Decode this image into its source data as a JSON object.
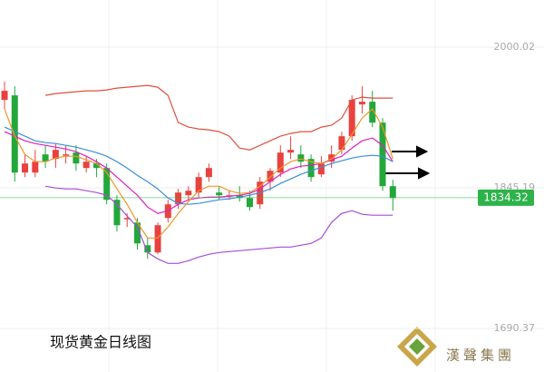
{
  "chart_data": {
    "type": "candlestick",
    "title": "现货黄金日线图",
    "open": [
      1942,
      1947,
      1862,
      1862,
      1882,
      1877,
      1882,
      1884,
      1867,
      1872,
      1867,
      1832,
      1812,
      1807,
      1782,
      1774,
      1812,
      1827,
      1837,
      1840,
      1857,
      1840,
      1837,
      1837,
      1834,
      1827,
      1852,
      1862,
      1884,
      1882,
      1877,
      1860,
      1874,
      1887,
      1902,
      1937,
      1940,
      1917,
      1847
    ],
    "high": [
      1962,
      1957,
      1882,
      1887,
      1892,
      1894,
      1892,
      1892,
      1880,
      1877,
      1872,
      1837,
      1817,
      1812,
      1790,
      1807,
      1832,
      1844,
      1847,
      1862,
      1872,
      1847,
      1842,
      1847,
      1842,
      1857,
      1867,
      1892,
      1902,
      1892,
      1882,
      1880,
      1892,
      1907,
      1947,
      1957,
      1952,
      1922,
      1854
    ],
    "low": [
      1932,
      1852,
      1857,
      1857,
      1867,
      1867,
      1872,
      1864,
      1862,
      1857,
      1827,
      1797,
      1802,
      1777,
      1767,
      1772,
      1807,
      1822,
      1832,
      1834,
      1852,
      1832,
      1832,
      1830,
      1820,
      1822,
      1842,
      1857,
      1877,
      1867,
      1852,
      1857,
      1867,
      1882,
      1897,
      1927,
      1912,
      1842,
      1820
    ],
    "close": [
      1952,
      1862,
      1872,
      1874,
      1874,
      1887,
      1882,
      1872,
      1874,
      1867,
      1832,
      1804,
      1812,
      1784,
      1774,
      1804,
      1827,
      1840,
      1842,
      1857,
      1867,
      1837,
      1837,
      1834,
      1824,
      1852,
      1864,
      1884,
      1887,
      1874,
      1857,
      1872,
      1882,
      1902,
      1942,
      1940,
      1917,
      1847,
      1834
    ],
    "up_color": "#e8423f",
    "down_color": "#22a83a",
    "series": [
      {
        "color": "#e0503c",
        "values": [
          null,
          null,
          null,
          null,
          1947,
          1949,
          1950,
          1951,
          1952,
          1952,
          1953,
          1955,
          1956,
          1957,
          1958,
          1956,
          1947,
          1917,
          1912,
          1910,
          1909,
          1907,
          1902,
          1889,
          1887,
          1892,
          1897,
          1902,
          1905,
          1907,
          1907,
          1912,
          1914,
          1922,
          1942,
          1945,
          1944,
          1944,
          1944
        ]
      },
      {
        "color": "#a64dd9",
        "values": [
          null,
          null,
          null,
          null,
          1847,
          1845,
          1844,
          1844,
          1842,
          1840,
          1837,
          1827,
          1814,
          1802,
          1774,
          1767,
          1762,
          1762,
          1765,
          1769,
          1772,
          1774,
          1775,
          1776,
          1777,
          1778,
          1779,
          1780,
          1780,
          1782,
          1784,
          1790,
          1807,
          1817,
          1820,
          1816,
          1815,
          1815,
          1815
        ]
      },
      {
        "color": "#e020c0",
        "values": [
          1907,
          1902,
          1897,
          1894,
          1892,
          1890,
          1888,
          1885,
          1880,
          1874,
          1867,
          1857,
          1847,
          1837,
          1824,
          1817,
          1820,
          1827,
          1832,
          1834,
          1835,
          1835,
          1836,
          1837,
          1839,
          1844,
          1852,
          1860,
          1866,
          1869,
          1870,
          1872,
          1876,
          1880,
          1889,
          1897,
          1900,
          1892,
          1874
        ]
      },
      {
        "color": "#3a8ee0",
        "values": [
          1912,
          1907,
          1902,
          1897,
          1895,
          1894,
          1892,
          1890,
          1887,
          1884,
          1880,
          1874,
          1867,
          1859,
          1852,
          1844,
          1834,
          1828,
          1827,
          1828,
          1830,
          1832,
          1833,
          1835,
          1837,
          1840,
          1844,
          1850,
          1855,
          1860,
          1864,
          1868,
          1872,
          1875,
          1878,
          1880,
          1881,
          1880,
          1874
        ]
      },
      {
        "color": "#f0962a",
        "values": [
          1932,
          1902,
          1882,
          1874,
          1874,
          1878,
          1880,
          1880,
          1876,
          1872,
          1862,
          1844,
          1827,
          1807,
          1790,
          1790,
          1802,
          1817,
          1830,
          1842,
          1847,
          1847,
          1842,
          1839,
          1840,
          1847,
          1857,
          1867,
          1874,
          1877,
          1874,
          1872,
          1877,
          1887,
          1904,
          1922,
          1932,
          1912,
          1877
        ]
      }
    ],
    "ylim": [
      1642.4,
      2052.0
    ],
    "yticks": [
      2000.02,
      1845.19,
      1690.37
    ],
    "last_price": 1834.32,
    "last_price_color": "#2db34a"
  },
  "logo_text": "漢聲集團"
}
